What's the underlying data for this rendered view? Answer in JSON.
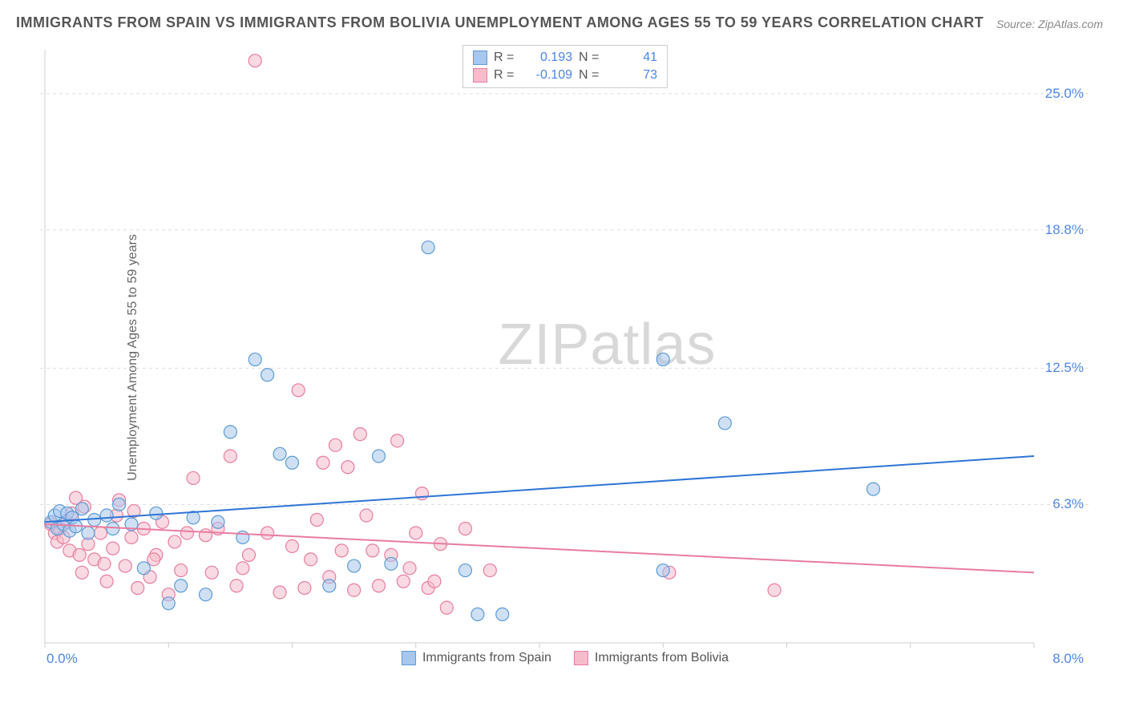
{
  "title": "IMMIGRANTS FROM SPAIN VS IMMIGRANTS FROM BOLIVIA UNEMPLOYMENT AMONG AGES 55 TO 59 YEARS CORRELATION CHART",
  "source": "Source: ZipAtlas.com",
  "ylabel": "Unemployment Among Ages 55 to 59 years",
  "watermark_a": "ZIP",
  "watermark_b": "atlas",
  "chart": {
    "type": "scatter",
    "xlim": [
      0.0,
      8.0
    ],
    "ylim": [
      0.0,
      27.0
    ],
    "xticks": [
      0.0,
      8.0
    ],
    "xtick_labels": [
      "0.0%",
      "8.0%"
    ],
    "yticks": [
      6.3,
      12.5,
      18.8,
      25.0
    ],
    "ytick_labels": [
      "6.3%",
      "12.5%",
      "18.8%",
      "25.0%"
    ],
    "grid_color": "#dddddd",
    "axis_color": "#cccccc",
    "background_color": "#ffffff",
    "marker_radius": 8,
    "marker_opacity": 0.55,
    "line_width": 2,
    "x_label_color_left": "#4a86e8",
    "x_label_color_right": "#4a86e8",
    "ytick_color": "#4a86e8"
  },
  "series": [
    {
      "name": "Immigrants from Spain",
      "color_fill": "#a7c7ed",
      "color_stroke": "#5b9bd5",
      "r_value": "0.193",
      "n_value": "41",
      "trend": {
        "x1": 0.0,
        "y1": 5.5,
        "x2": 8.0,
        "y2": 8.5,
        "color": "#2e75d6"
      },
      "points": [
        [
          0.05,
          5.5
        ],
        [
          0.08,
          5.8
        ],
        [
          0.1,
          5.2
        ],
        [
          0.12,
          6.0
        ],
        [
          0.15,
          5.4
        ],
        [
          0.18,
          5.9
        ],
        [
          0.2,
          5.1
        ],
        [
          0.22,
          5.7
        ],
        [
          0.25,
          5.3
        ],
        [
          0.3,
          6.1
        ],
        [
          0.35,
          5.0
        ],
        [
          0.4,
          5.6
        ],
        [
          0.5,
          5.8
        ],
        [
          0.55,
          5.2
        ],
        [
          0.6,
          6.3
        ],
        [
          0.7,
          5.4
        ],
        [
          0.8,
          3.4
        ],
        [
          0.9,
          5.9
        ],
        [
          1.0,
          1.8
        ],
        [
          1.1,
          2.6
        ],
        [
          1.2,
          5.7
        ],
        [
          1.3,
          2.2
        ],
        [
          1.4,
          5.5
        ],
        [
          1.5,
          9.6
        ],
        [
          1.6,
          4.8
        ],
        [
          1.7,
          12.9
        ],
        [
          1.8,
          12.2
        ],
        [
          1.9,
          8.6
        ],
        [
          2.0,
          8.2
        ],
        [
          2.3,
          2.6
        ],
        [
          2.5,
          3.5
        ],
        [
          2.7,
          8.5
        ],
        [
          2.8,
          3.6
        ],
        [
          3.1,
          18.0
        ],
        [
          3.4,
          3.3
        ],
        [
          3.5,
          1.3
        ],
        [
          3.7,
          1.3
        ],
        [
          5.0,
          3.3
        ],
        [
          5.0,
          12.9
        ],
        [
          5.5,
          10.0
        ],
        [
          6.7,
          7.0
        ]
      ]
    },
    {
      "name": "Immigrants from Bolivia",
      "color_fill": "#f5bccb",
      "color_stroke": "#e87ca0",
      "r_value": "-0.109",
      "n_value": "73",
      "trend": {
        "x1": 0.0,
        "y1": 5.4,
        "x2": 8.0,
        "y2": 3.2,
        "color": "#e87ca0"
      },
      "points": [
        [
          0.05,
          5.4
        ],
        [
          0.08,
          5.0
        ],
        [
          0.1,
          4.6
        ],
        [
          0.12,
          5.2
        ],
        [
          0.15,
          4.8
        ],
        [
          0.18,
          5.5
        ],
        [
          0.2,
          4.2
        ],
        [
          0.22,
          5.9
        ],
        [
          0.25,
          6.6
        ],
        [
          0.28,
          4.0
        ],
        [
          0.3,
          3.2
        ],
        [
          0.35,
          4.5
        ],
        [
          0.4,
          3.8
        ],
        [
          0.45,
          5.0
        ],
        [
          0.5,
          2.8
        ],
        [
          0.55,
          4.3
        ],
        [
          0.6,
          6.5
        ],
        [
          0.65,
          3.5
        ],
        [
          0.7,
          4.8
        ],
        [
          0.75,
          2.5
        ],
        [
          0.8,
          5.2
        ],
        [
          0.85,
          3.0
        ],
        [
          0.9,
          4.0
        ],
        [
          0.95,
          5.5
        ],
        [
          1.0,
          2.2
        ],
        [
          1.05,
          4.6
        ],
        [
          1.1,
          3.3
        ],
        [
          1.2,
          7.5
        ],
        [
          1.3,
          4.9
        ],
        [
          1.4,
          5.2
        ],
        [
          1.5,
          8.5
        ],
        [
          1.55,
          2.6
        ],
        [
          1.6,
          3.4
        ],
        [
          1.7,
          26.5
        ],
        [
          1.8,
          5.0
        ],
        [
          1.9,
          2.3
        ],
        [
          2.0,
          4.4
        ],
        [
          2.05,
          11.5
        ],
        [
          2.1,
          2.5
        ],
        [
          2.2,
          5.6
        ],
        [
          2.25,
          8.2
        ],
        [
          2.3,
          3.0
        ],
        [
          2.35,
          9.0
        ],
        [
          2.4,
          4.2
        ],
        [
          2.45,
          8.0
        ],
        [
          2.5,
          2.4
        ],
        [
          2.55,
          9.5
        ],
        [
          2.6,
          5.8
        ],
        [
          2.7,
          2.6
        ],
        [
          2.8,
          4.0
        ],
        [
          2.85,
          9.2
        ],
        [
          2.9,
          2.8
        ],
        [
          3.0,
          5.0
        ],
        [
          3.05,
          6.8
        ],
        [
          3.1,
          2.5
        ],
        [
          3.2,
          4.5
        ],
        [
          3.25,
          1.6
        ],
        [
          3.4,
          5.2
        ],
        [
          3.6,
          3.3
        ],
        [
          5.05,
          3.2
        ],
        [
          5.9,
          2.4
        ],
        [
          0.32,
          6.2
        ],
        [
          0.48,
          3.6
        ],
        [
          0.58,
          5.8
        ],
        [
          0.72,
          6.0
        ],
        [
          0.88,
          3.8
        ],
        [
          1.15,
          5.0
        ],
        [
          1.35,
          3.2
        ],
        [
          1.65,
          4.0
        ],
        [
          2.15,
          3.8
        ],
        [
          2.65,
          4.2
        ],
        [
          2.95,
          3.4
        ],
        [
          3.15,
          2.8
        ]
      ]
    }
  ],
  "legend_top": {
    "r_label": "R  =",
    "n_label": "N  =",
    "value_color": "#4a86e8"
  },
  "legend_bottom_labels": [
    "Immigrants from Spain",
    "Immigrants from Bolivia"
  ]
}
